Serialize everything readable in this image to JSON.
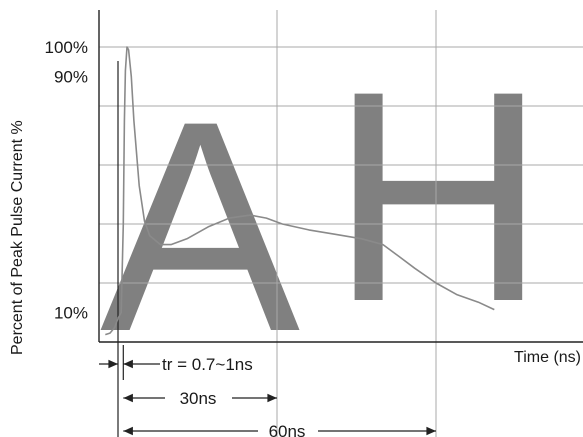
{
  "chart_data": {
    "type": "line",
    "title": "",
    "ylabel": "Percent of Peak Pulse Current %",
    "xlabel": "Time (ns)",
    "x_unit": "ns",
    "y_unit": "%",
    "xlim": [
      -4,
      85
    ],
    "ylim": [
      0,
      108
    ],
    "grid": true,
    "y_tick_labels": [
      {
        "value": 100,
        "label": "100%"
      },
      {
        "value": 90,
        "label": "90%"
      },
      {
        "value": 10,
        "label": "10%"
      }
    ],
    "x_gridlines": [
      30,
      60
    ],
    "y_gridlines": [
      20,
      40,
      60,
      80,
      100
    ],
    "series": [
      {
        "color": "#8a8a8a",
        "x": [
          0,
          0.6,
          1.0,
          1.2,
          1.4,
          1.7,
          2,
          2.5,
          3,
          4,
          5,
          6,
          8,
          10,
          13,
          17,
          21,
          25,
          28,
          31,
          36,
          41,
          46,
          50,
          53,
          56,
          60,
          64,
          68,
          71
        ],
        "y": [
          8,
          10,
          40,
          75,
          92,
          100,
          99,
          90,
          75,
          53,
          41,
          36,
          33,
          33,
          35,
          39,
          42,
          43,
          42,
          40,
          38,
          36.5,
          35,
          33,
          29,
          25,
          20,
          16,
          13.5,
          11
        ]
      },
      {
        "color": "#8a8a8a",
        "x": [
          -2.4,
          -1.5,
          -0.6,
          0
        ],
        "y": [
          2.5,
          3,
          5,
          8
        ]
      }
    ],
    "annotations": [
      {
        "text": "tr = 0.7~1ns",
        "from": 0,
        "to": 1
      },
      {
        "text": "30ns",
        "from": 1,
        "to": 30
      },
      {
        "text": "60ns",
        "from": 1,
        "to": 60
      }
    ]
  }
}
